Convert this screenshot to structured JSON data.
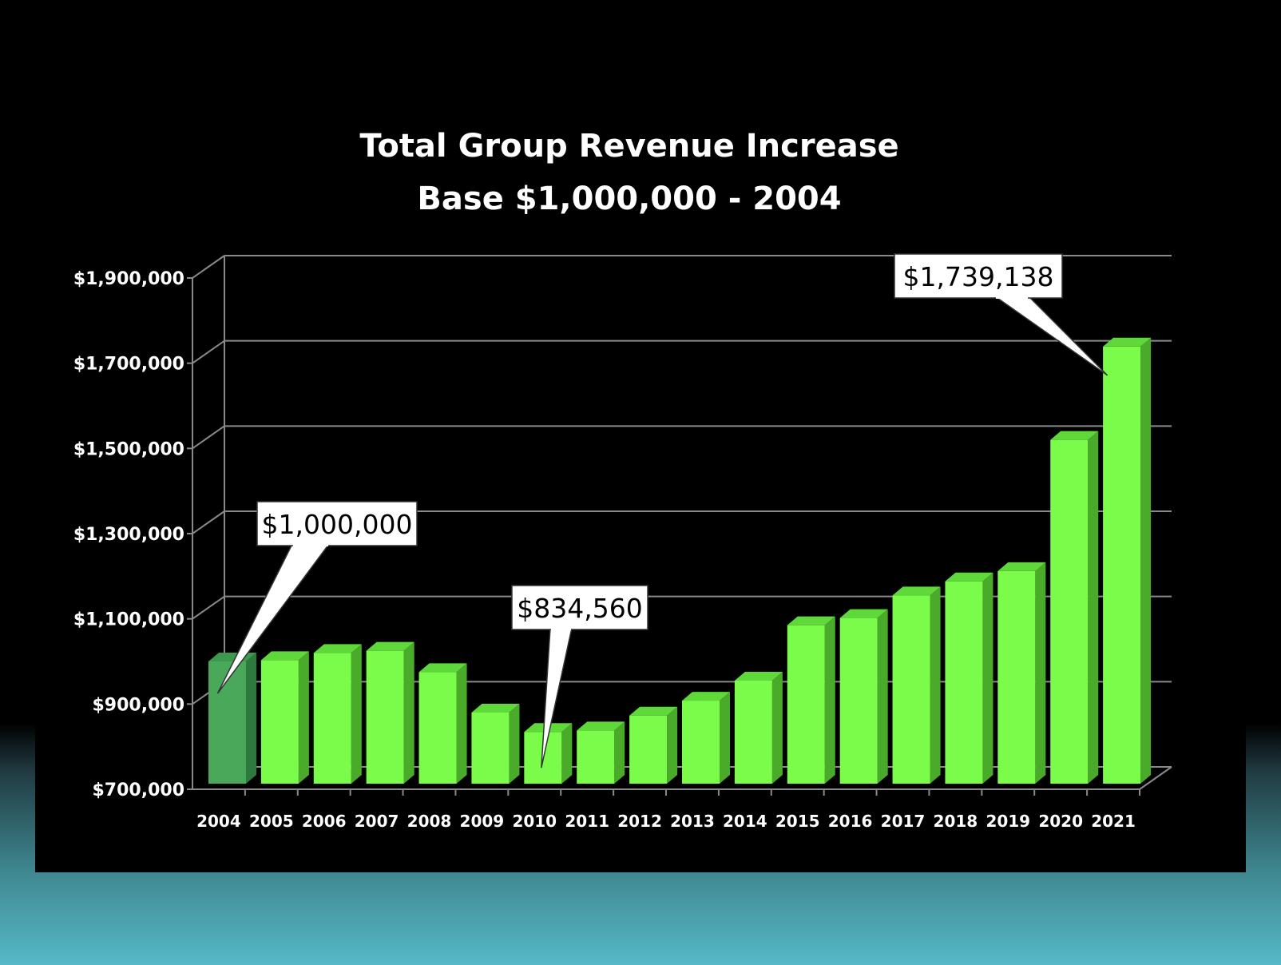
{
  "chart_data": {
    "type": "bar",
    "title": "Total Group Revenue Increase",
    "subtitle": "Base $1,000,000 - 2004",
    "xlabel": "",
    "ylabel": "",
    "ylim": [
      700000,
      1900000
    ],
    "ytick_values": [
      700000,
      900000,
      1100000,
      1300000,
      1500000,
      1700000,
      1900000
    ],
    "ytick_labels": [
      "$700,000",
      "$900,000",
      "$1,100,000",
      "$1,300,000",
      "$1,500,000",
      "$1,700,000",
      "$1,900,000"
    ],
    "categories": [
      "2004",
      "2005",
      "2006",
      "2007",
      "2008",
      "2009",
      "2010",
      "2011",
      "2012",
      "2013",
      "2014",
      "2015",
      "2016",
      "2017",
      "2018",
      "2019",
      "2020",
      "2021"
    ],
    "values": [
      1000000,
      1003000,
      1020000,
      1025000,
      975000,
      880000,
      834560,
      838000,
      873000,
      908000,
      955000,
      1085000,
      1102000,
      1155000,
      1188000,
      1212000,
      1520000,
      1739138
    ],
    "grid": true,
    "legend": "none",
    "colors": {
      "bar": "#7cfc4a",
      "bar_side": "#4aaa2a",
      "bar_top": "#5fd83a",
      "highlight_bar": "#4aa85a",
      "highlight_side": "#2e7a3e",
      "highlight_top": "#3c9a4c",
      "grid": "#8a8a8a"
    },
    "highlight_index": 0,
    "annotations": [
      {
        "text": "$1,000,000",
        "category": "2004"
      },
      {
        "text": "$834,560",
        "category": "2010"
      },
      {
        "text": "$1,739,138",
        "category": "2021"
      }
    ]
  }
}
